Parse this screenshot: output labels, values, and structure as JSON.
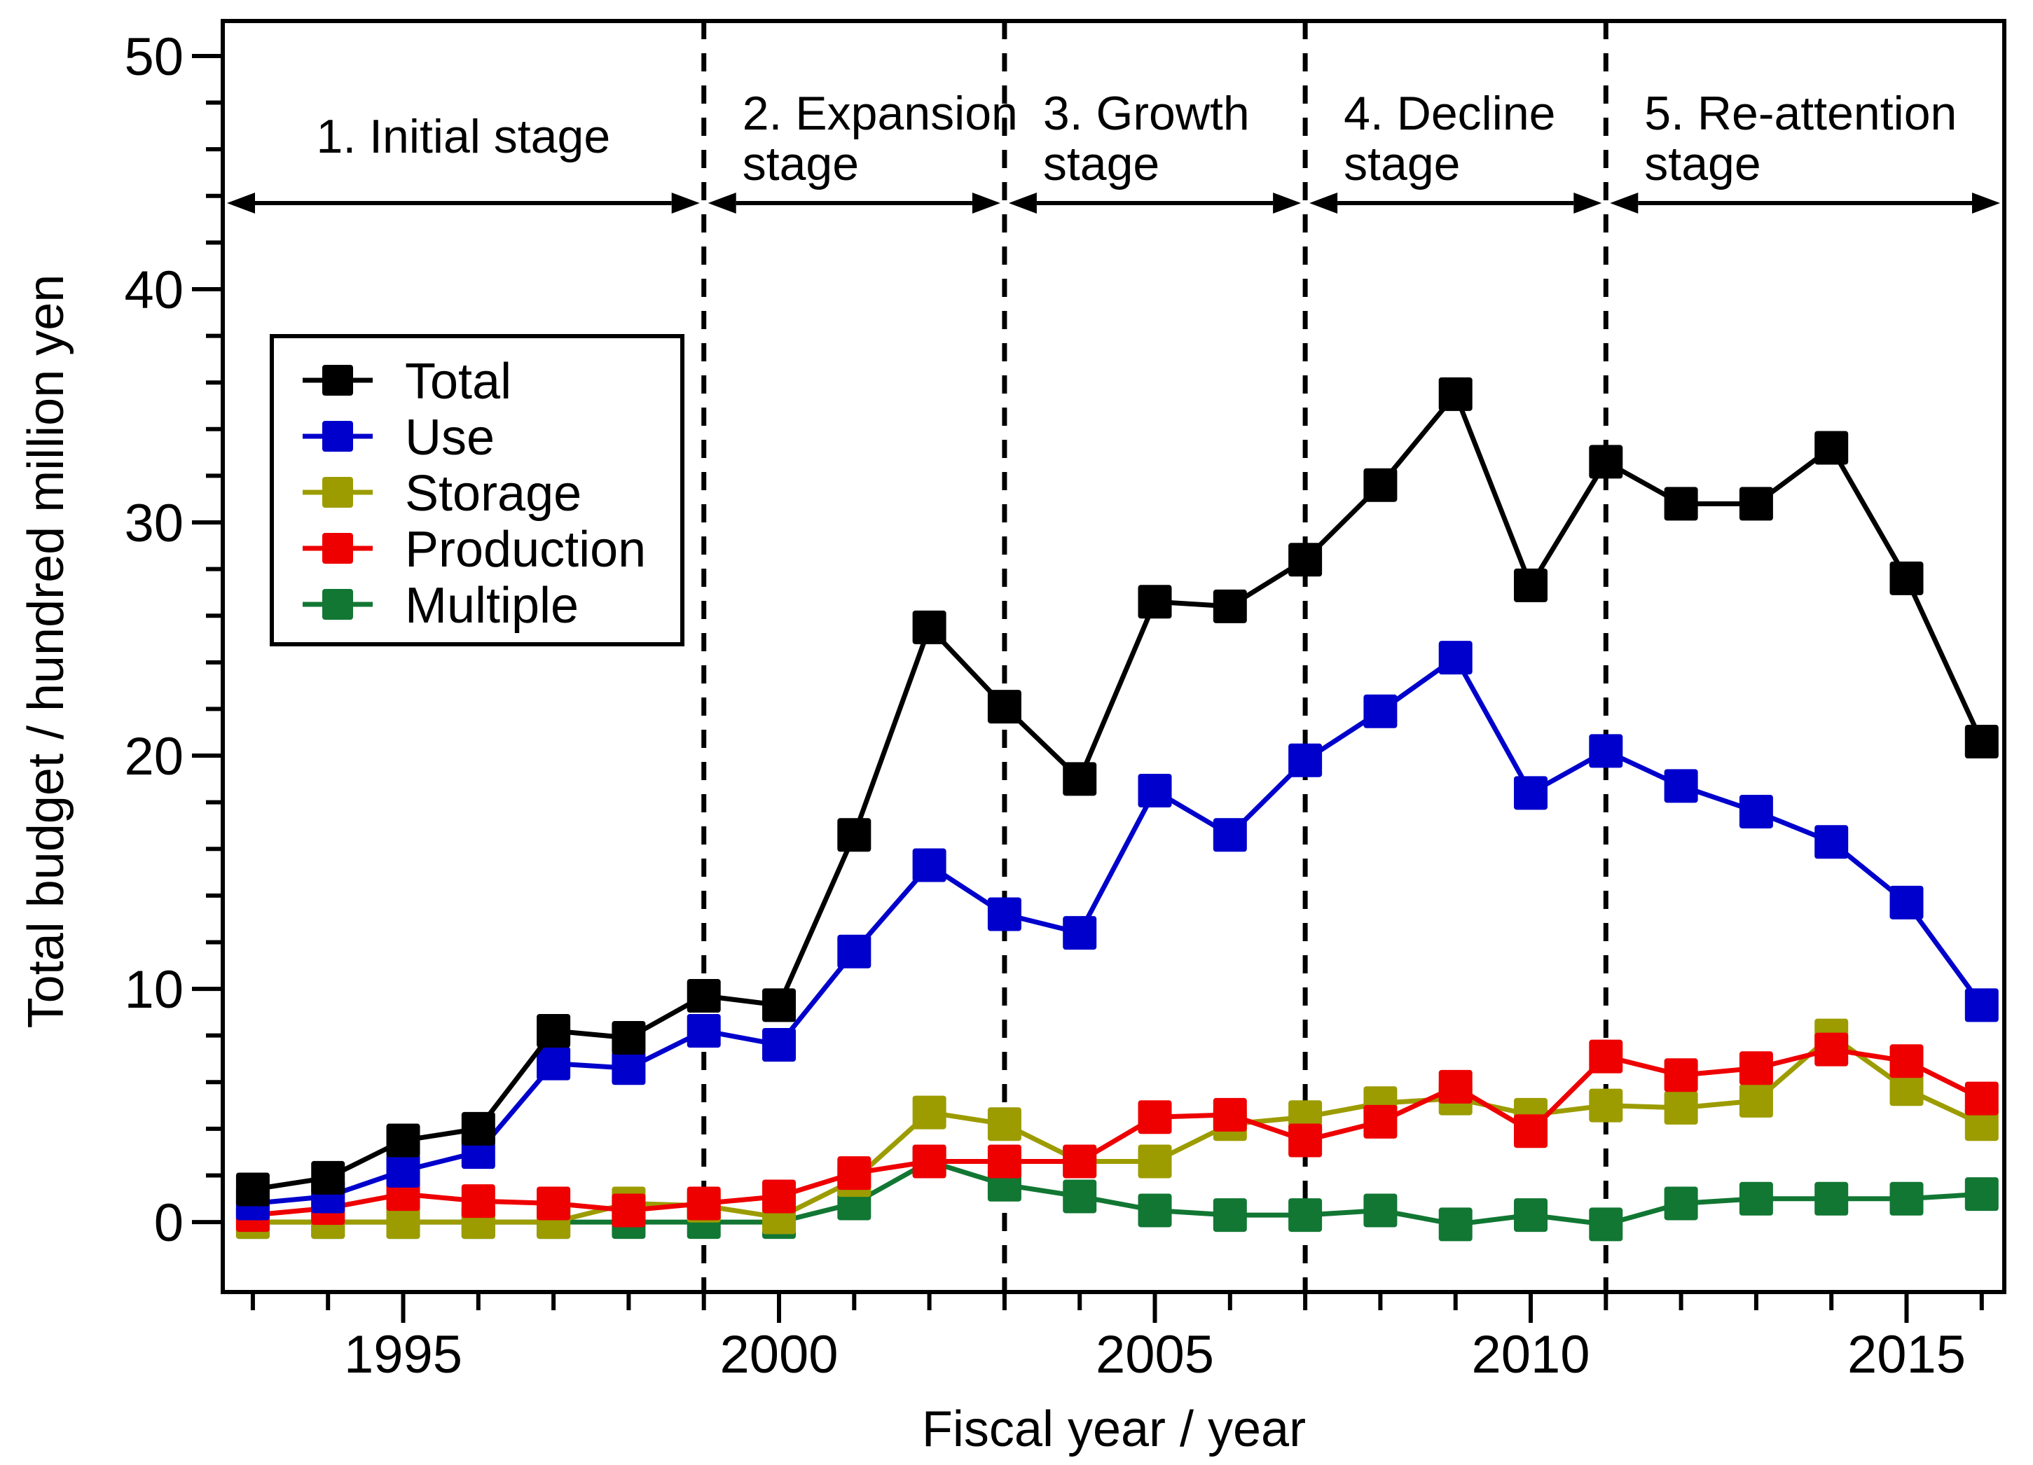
{
  "chart_data": {
    "type": "line",
    "xlabel": "Fiscal year / year",
    "ylabel": "Total budget / hundred million yen",
    "xlim": [
      1992.6,
      2016.3
    ],
    "ylim": [
      -3,
      51.5
    ],
    "x_ticks": [
      1995,
      2000,
      2005,
      2010,
      2015
    ],
    "x_tick_labels": [
      "1995",
      "2000",
      "2005",
      "2010",
      "2015"
    ],
    "y_ticks": [
      0,
      10,
      20,
      30,
      40,
      50
    ],
    "y_tick_labels": [
      "0",
      "10",
      "20",
      "30",
      "40",
      "50"
    ],
    "x": [
      1993,
      1994,
      1995,
      1996,
      1997,
      1998,
      1999,
      2000,
      2001,
      2002,
      2003,
      2004,
      2005,
      2006,
      2007,
      2008,
      2009,
      2010,
      2011,
      2012,
      2013,
      2014,
      2015,
      2016
    ],
    "series": [
      {
        "name": "Total",
        "color": "#000000",
        "values": [
          1.4,
          1.9,
          3.5,
          4.0,
          8.2,
          7.9,
          9.7,
          9.3,
          16.6,
          25.5,
          22.1,
          19.0,
          26.6,
          26.4,
          28.4,
          31.6,
          35.5,
          27.3,
          32.6,
          30.8,
          30.8,
          33.2,
          27.6,
          20.6
        ]
      },
      {
        "name": "Use",
        "color": "#0000cc",
        "values": [
          0.8,
          1.1,
          2.2,
          3.0,
          6.8,
          6.6,
          8.2,
          7.6,
          11.6,
          15.3,
          13.2,
          12.4,
          18.5,
          16.6,
          19.8,
          21.9,
          24.2,
          18.4,
          20.2,
          18.7,
          17.6,
          16.3,
          13.7,
          9.3
        ]
      },
      {
        "name": "Storage",
        "color": "#9c9c00",
        "values": [
          0.0,
          0.0,
          0.0,
          0.0,
          0.0,
          0.8,
          0.7,
          0.2,
          1.8,
          4.7,
          4.2,
          2.6,
          2.6,
          4.2,
          4.5,
          5.1,
          5.3,
          4.6,
          5.0,
          4.9,
          5.2,
          8.0,
          5.7,
          4.2
        ]
      },
      {
        "name": "Production",
        "color": "#ee0000",
        "values": [
          0.3,
          0.6,
          1.2,
          0.9,
          0.8,
          0.5,
          0.8,
          1.1,
          2.1,
          2.6,
          2.6,
          2.6,
          4.5,
          4.6,
          3.5,
          4.3,
          5.8,
          3.9,
          7.1,
          6.3,
          6.6,
          7.4,
          6.9,
          5.3
        ]
      },
      {
        "name": "Multiple",
        "color": "#117733",
        "values": [
          0.0,
          0.0,
          0.0,
          0.0,
          0.0,
          0.0,
          0.0,
          0.0,
          0.8,
          2.6,
          1.6,
          1.1,
          0.5,
          0.3,
          0.3,
          0.5,
          -0.1,
          0.3,
          -0.1,
          0.8,
          1.0,
          1.0,
          1.0,
          1.2
        ]
      }
    ],
    "stage_boundaries": [
      1999,
      2003,
      2007,
      2011
    ],
    "stages": [
      {
        "lines": [
          "1. Initial stage"
        ],
        "from": 1992.6,
        "to": 1999
      },
      {
        "lines": [
          "2. Expansion",
          "stage"
        ],
        "from": 1999,
        "to": 2003
      },
      {
        "lines": [
          "3. Growth",
          "stage"
        ],
        "from": 2003,
        "to": 2007
      },
      {
        "lines": [
          "4. Decline",
          "stage"
        ],
        "from": 2007,
        "to": 2011
      },
      {
        "lines": [
          "5. Re-attention",
          "stage"
        ],
        "from": 2011,
        "to": 2016.3
      }
    ],
    "legend": {
      "position": "upper-left",
      "entries": [
        "Total",
        "Use",
        "Storage",
        "Production",
        "Multiple"
      ]
    }
  }
}
